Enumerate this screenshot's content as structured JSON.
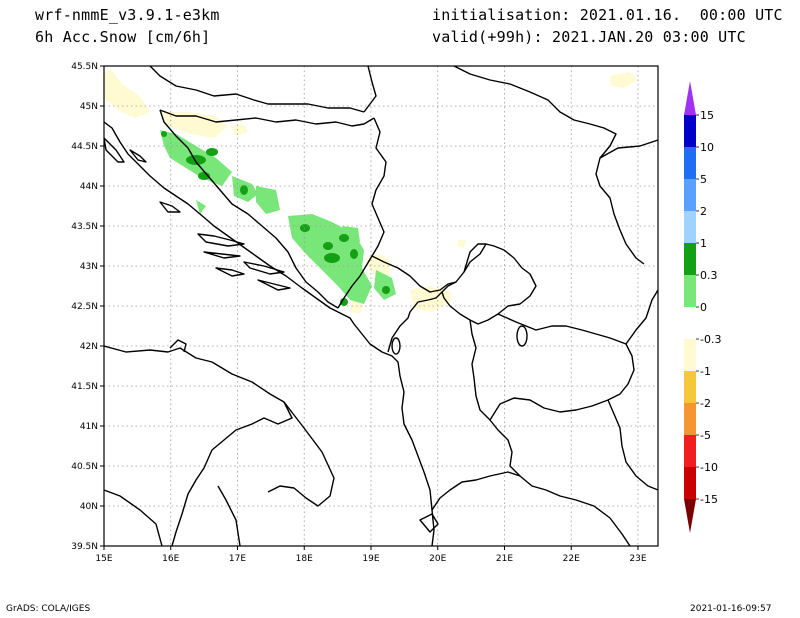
{
  "header": {
    "model": "wrf-nmmE_v3.9.1-e3km",
    "variable": "6h Acc.Snow [cm/6h]",
    "init": "initialisation: 2021.01.16.  00:00 UTC",
    "valid": "valid(+99h): 2021.JAN.20 03:00 UTC"
  },
  "map": {
    "lat_labels": [
      "45.5N",
      "45N",
      "44.5N",
      "44N",
      "43.5N",
      "43N",
      "42.5N",
      "42N",
      "41.5N",
      "41N",
      "40.5N",
      "40N",
      "39.5N"
    ],
    "lon_labels": [
      "15E",
      "16E",
      "17E",
      "18E",
      "19E",
      "20E",
      "21E",
      "22E",
      "23E"
    ],
    "lon_range": [
      15,
      23.3
    ],
    "lat_range": [
      39.5,
      45.5
    ],
    "grid": "dotted"
  },
  "colorbar": {
    "levels": [
      "15",
      "10",
      "5",
      "2",
      "1",
      "0.3",
      "0",
      "-0.3",
      "-1",
      "-2",
      "-5",
      "-10",
      "-15"
    ],
    "colors": [
      "#0000c8",
      "#1e6ef5",
      "#5aa0ff",
      "#a0d2ff",
      "#14a014",
      "#78e678",
      "#ffffff",
      "#fffad2",
      "#f5c83c",
      "#f59632",
      "#f01e1e",
      "#c80000",
      "#a00000"
    ],
    "top_arrow": "#a032f5",
    "bottom_arrow": "#780000"
  },
  "snow_colors": {
    "light_green": "#78e678",
    "dark_green": "#14a014",
    "pale_yellow": "#fffad2"
  },
  "footer": {
    "left": "GrADS: COLA/IGES",
    "right": "2021-01-16-09:57"
  }
}
